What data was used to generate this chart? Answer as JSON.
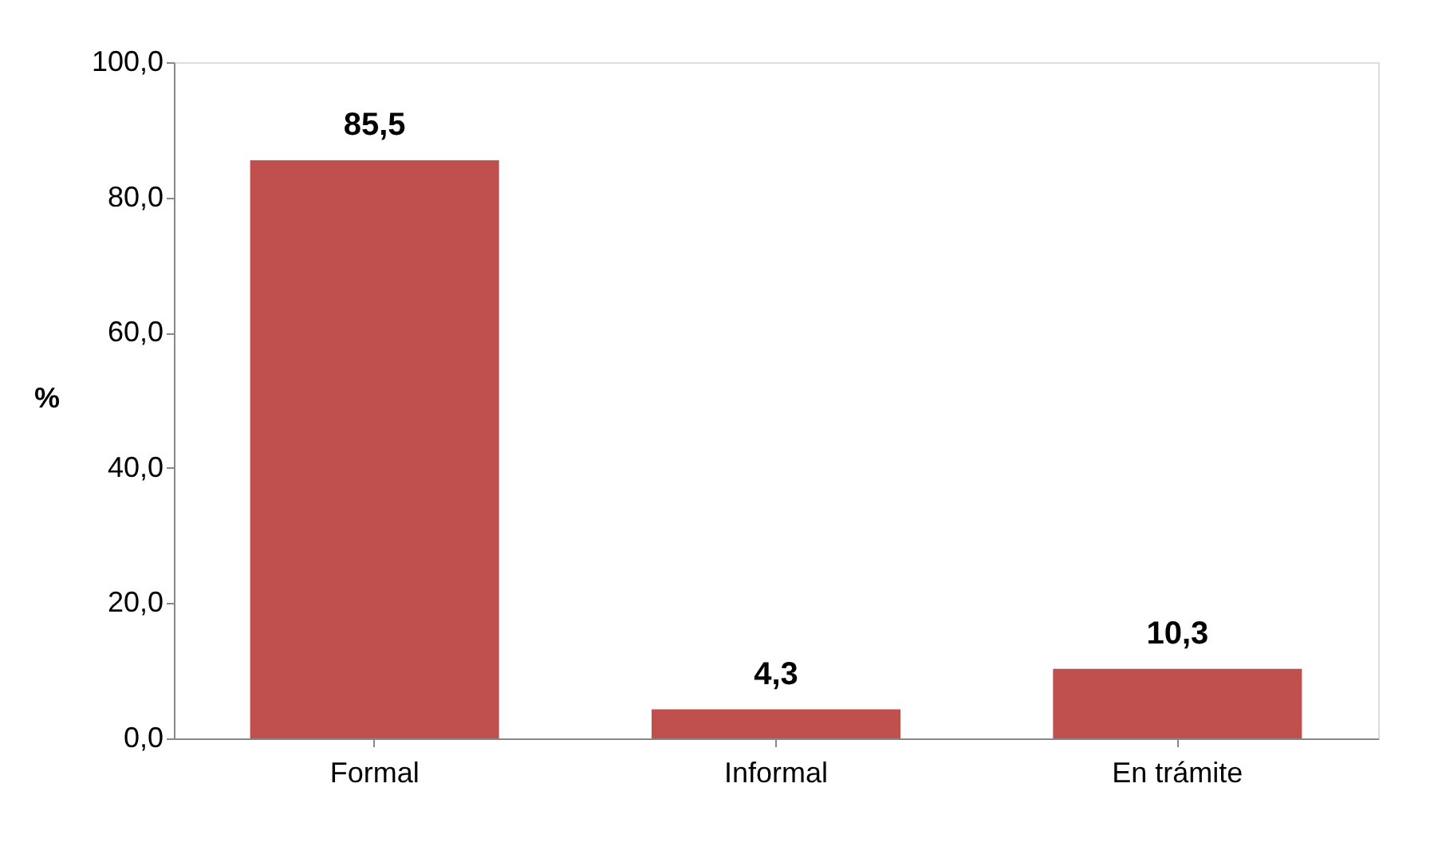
{
  "chart_data": {
    "type": "bar",
    "ylabel": "%",
    "categories": [
      "Formal",
      "Informal",
      "En trámite"
    ],
    "values": [
      85.5,
      4.3,
      10.3
    ],
    "value_labels": [
      "85,5",
      "4,3",
      "10,3"
    ],
    "color": "#c0504d",
    "ylim": [
      0,
      100
    ],
    "yticks": [
      {
        "value": 0,
        "label": "0,0"
      },
      {
        "value": 20,
        "label": "20,0"
      },
      {
        "value": 40,
        "label": "40,0"
      },
      {
        "value": 60,
        "label": "60,0"
      },
      {
        "value": 80,
        "label": "80,0"
      },
      {
        "value": 100,
        "label": "100,0"
      }
    ],
    "grid": false
  }
}
